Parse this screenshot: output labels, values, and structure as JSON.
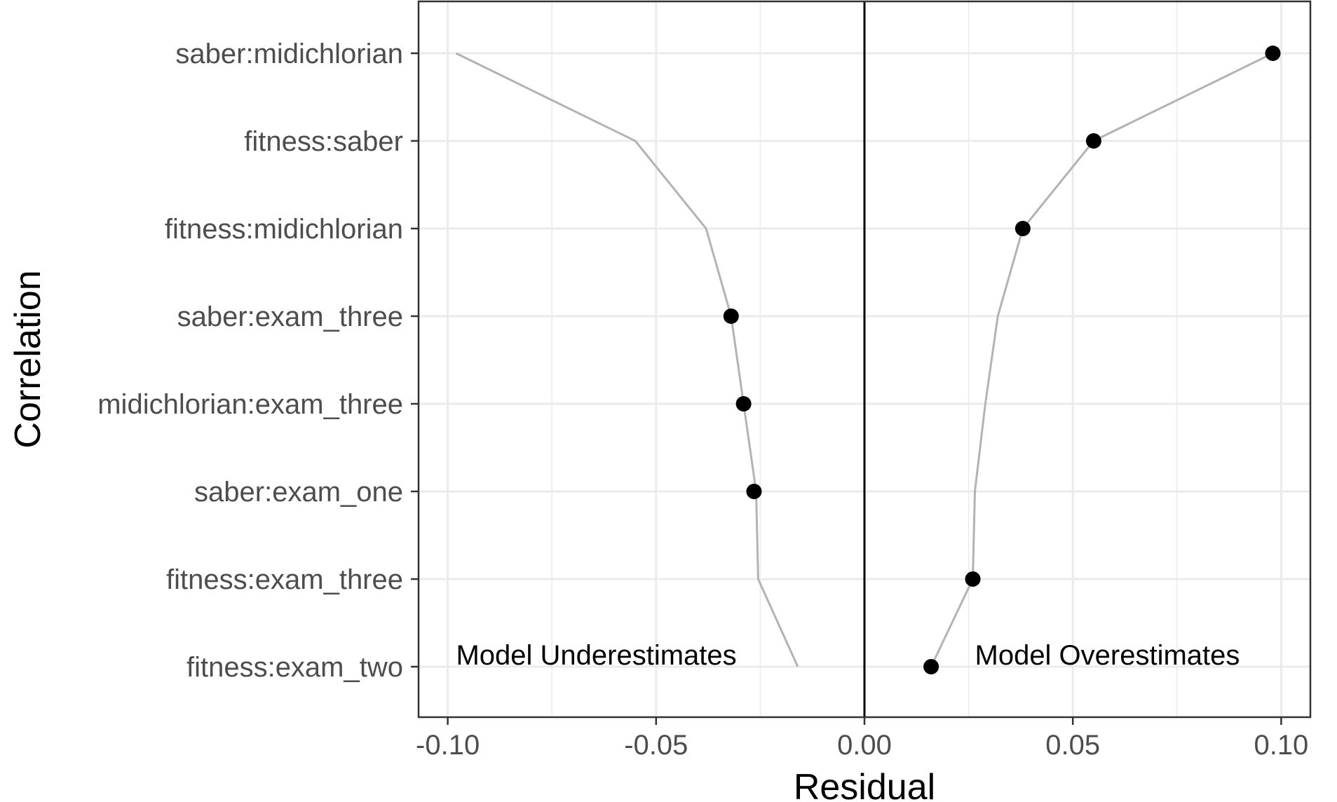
{
  "chart_data": {
    "type": "scatter",
    "xlabel": "Residual",
    "ylabel": "Correlation",
    "xlim": [
      -0.107,
      0.107
    ],
    "xticks": [
      -0.1,
      -0.05,
      0.0,
      0.05,
      0.1
    ],
    "xtick_labels": [
      "-0.10",
      "-0.05",
      "0.00",
      "0.05",
      "0.10"
    ],
    "categories": [
      "saber:midichlorian",
      "fitness:saber",
      "fitness:midichlorian",
      "saber:exam_three",
      "midichlorian:exam_three",
      "saber:exam_one",
      "fitness:exam_three",
      "fitness:exam_two"
    ],
    "series": [
      {
        "role": "observed points",
        "values": [
          0.098,
          0.055,
          0.038,
          -0.032,
          -0.029,
          -0.0265,
          0.026,
          0.016
        ]
      }
    ],
    "reference_lines": {
      "underestimate_curve": [
        -0.098,
        -0.055,
        -0.038,
        -0.032,
        -0.029,
        -0.026,
        -0.0255,
        -0.016
      ],
      "overestimate_curve": [
        0.098,
        0.055,
        0.038,
        0.032,
        0.029,
        0.0265,
        0.026,
        0.016
      ],
      "vertical_at": 0.0
    },
    "annotations": [
      {
        "text": "Model Underestimates",
        "x": -0.098,
        "category": "fitness:exam_two"
      },
      {
        "text": "Model Overestimates",
        "x": 0.0265,
        "category": "fitness:exam_two"
      }
    ],
    "grid": true,
    "legend": "none",
    "colors": {
      "points": "#000000",
      "curve": "#b3b3b3",
      "grid": "#ebebeb",
      "zero_line": "#000000",
      "panel_border": "#333333"
    }
  }
}
